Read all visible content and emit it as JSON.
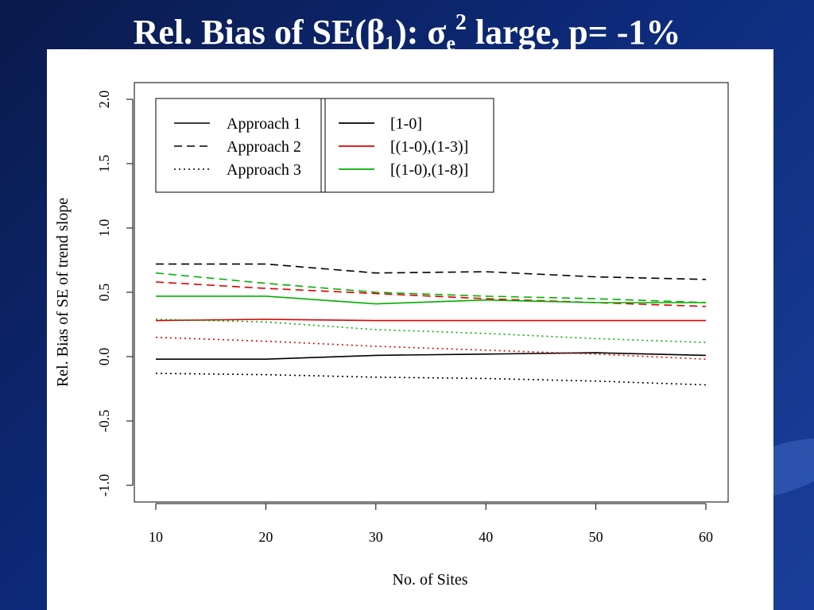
{
  "slide": {
    "title_main": "Rel. Bias of SE(β",
    "title_sub1": "1",
    "title_mid": "): σ",
    "title_sub2": "e",
    "title_sup": "2",
    "title_end": " large, p= -1%"
  },
  "chart_data": {
    "type": "line",
    "title": "",
    "xlabel": "No. of Sites",
    "ylabel": "Rel. Bias of SE of trend slope",
    "xlim": [
      10,
      60
    ],
    "ylim": [
      -1.0,
      2.0
    ],
    "x_ticks": [
      10,
      20,
      30,
      40,
      50,
      60
    ],
    "x_tick_labels": [
      "10",
      "20",
      "30",
      "40",
      "50",
      "60"
    ],
    "y_ticks": [
      -1.0,
      -0.5,
      0.0,
      0.5,
      1.0,
      1.5,
      2.0
    ],
    "y_tick_labels": [
      "-1.0",
      "-0.5",
      "0.0",
      "0.5",
      "1.0",
      "1.5",
      "2.0"
    ],
    "grid": false,
    "legend_position": "top-left",
    "legend_approaches": [
      {
        "label": "Approach 1",
        "dash": "solid"
      },
      {
        "label": "Approach 2",
        "dash": "dashed"
      },
      {
        "label": "Approach 3",
        "dash": "dotted"
      }
    ],
    "legend_designs": [
      {
        "label": "[1-0]",
        "color": "#000000"
      },
      {
        "label": "[(1-0),(1-3)]",
        "color": "#e00000"
      },
      {
        "label": "[(1-0),(1-8)]",
        "color": "#00b000"
      }
    ],
    "x": [
      10,
      20,
      30,
      40,
      50,
      60
    ],
    "series": [
      {
        "approach": "Approach 1",
        "design": "[1-0]",
        "color": "#000000",
        "dash": "solid",
        "values": [
          -0.02,
          -0.02,
          0.01,
          0.02,
          0.03,
          0.01
        ]
      },
      {
        "approach": "Approach 2",
        "design": "[1-0]",
        "color": "#000000",
        "dash": "dashed",
        "values": [
          0.72,
          0.72,
          0.65,
          0.66,
          0.62,
          0.6
        ]
      },
      {
        "approach": "Approach 3",
        "design": "[1-0]",
        "color": "#000000",
        "dash": "dotted",
        "values": [
          -0.13,
          -0.14,
          -0.16,
          -0.17,
          -0.19,
          -0.22
        ]
      },
      {
        "approach": "Approach 1",
        "design": "[(1-0),(1-3)]",
        "color": "#e00000",
        "dash": "solid",
        "values": [
          0.28,
          0.29,
          0.28,
          0.28,
          0.28,
          0.28
        ]
      },
      {
        "approach": "Approach 2",
        "design": "[(1-0),(1-3)]",
        "color": "#e00000",
        "dash": "dashed",
        "values": [
          0.58,
          0.53,
          0.49,
          0.45,
          0.42,
          0.39
        ]
      },
      {
        "approach": "Approach 3",
        "design": "[(1-0),(1-3)]",
        "color": "#e00000",
        "dash": "dotted",
        "values": [
          0.15,
          0.12,
          0.08,
          0.05,
          0.02,
          -0.02
        ]
      },
      {
        "approach": "Approach 1",
        "design": "[(1-0),(1-8)]",
        "color": "#00b000",
        "dash": "solid",
        "values": [
          0.47,
          0.47,
          0.41,
          0.44,
          0.42,
          0.42
        ]
      },
      {
        "approach": "Approach 2",
        "design": "[(1-0),(1-8)]",
        "color": "#00b000",
        "dash": "dashed",
        "values": [
          0.65,
          0.57,
          0.5,
          0.47,
          0.45,
          0.42
        ]
      },
      {
        "approach": "Approach 3",
        "design": "[(1-0),(1-8)]",
        "color": "#00b000",
        "dash": "dotted",
        "values": [
          0.29,
          0.27,
          0.21,
          0.18,
          0.14,
          0.11
        ]
      }
    ]
  }
}
